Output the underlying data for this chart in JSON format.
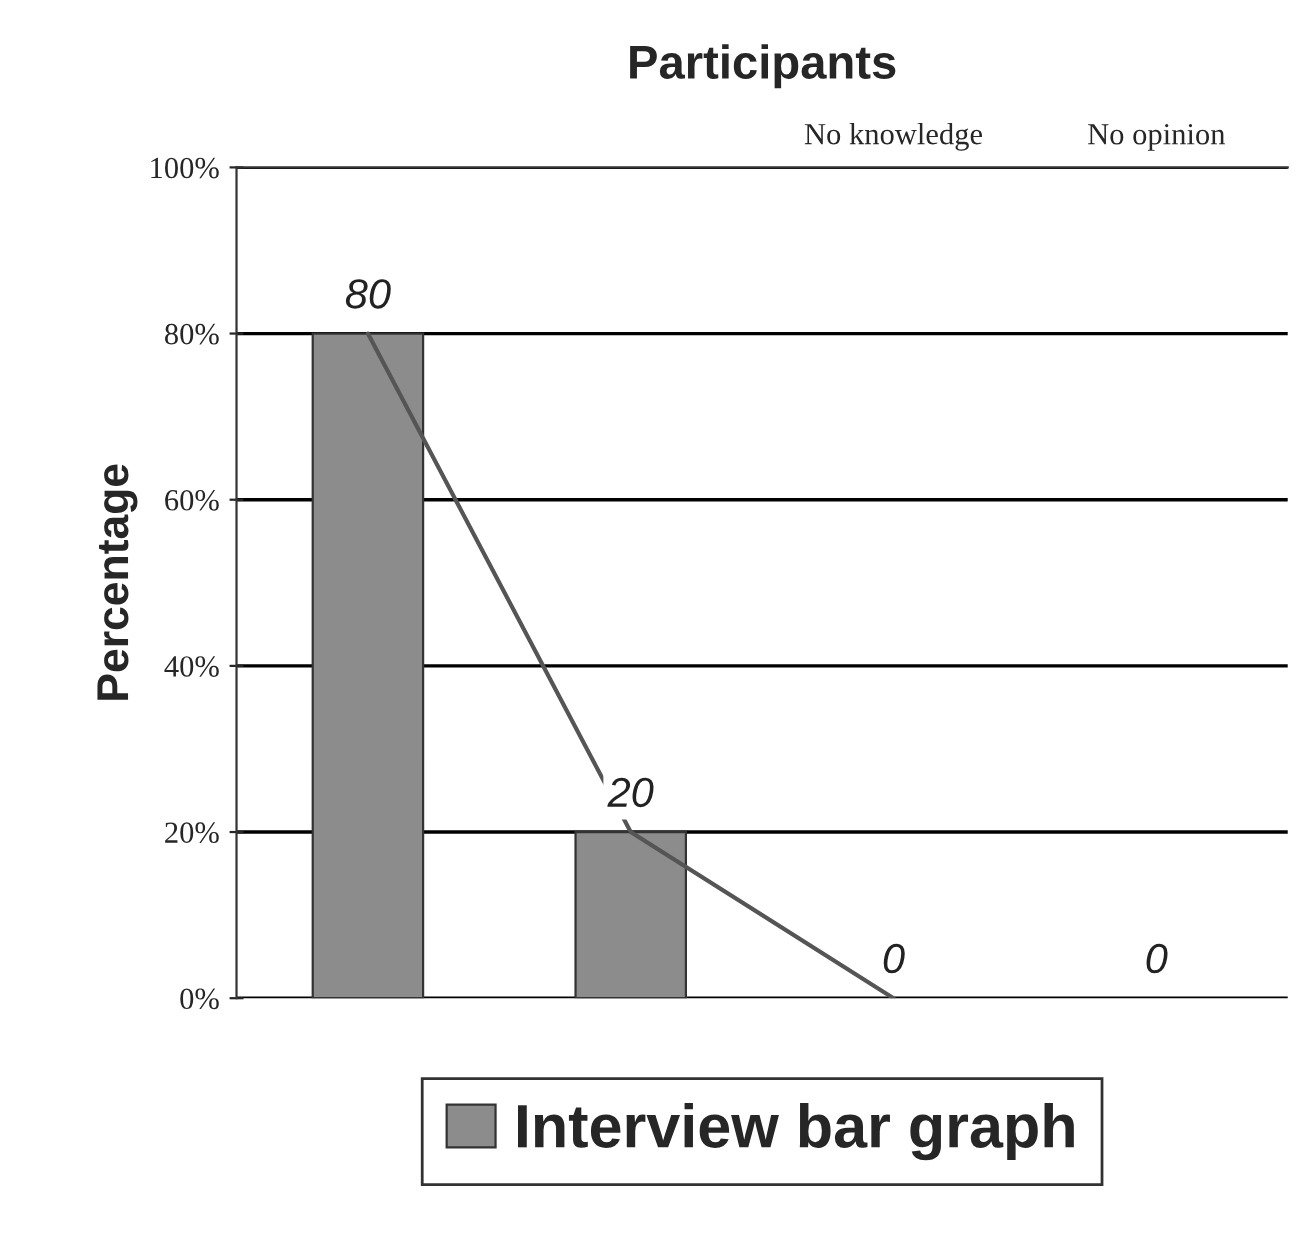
{
  "chart_data": {
    "type": "bar",
    "title": "Participants",
    "ylabel": "Percentage",
    "categories": [
      null,
      null,
      "No knowledge",
      "No opinion"
    ],
    "series": [
      {
        "name": "Interview bar graph",
        "color": "#8c8c8c",
        "values": [
          80,
          20,
          0,
          0
        ]
      },
      {
        "type": "line",
        "color": "#555555",
        "values": [
          80,
          20,
          0,
          null
        ],
        "value_labels": [
          null,
          null,
          null,
          null
        ]
      }
    ],
    "data_labels": true,
    "ylim": [
      0,
      100
    ],
    "yticks": [
      {
        "value": 0,
        "label": "0%"
      },
      {
        "value": 20,
        "label": "20%"
      },
      {
        "value": 40,
        "label": "40%"
      },
      {
        "value": 60,
        "label": "60%"
      },
      {
        "value": 80,
        "label": "80%"
      },
      {
        "value": 100,
        "label": "100%"
      }
    ],
    "grid": "y",
    "legend": "bottom"
  }
}
